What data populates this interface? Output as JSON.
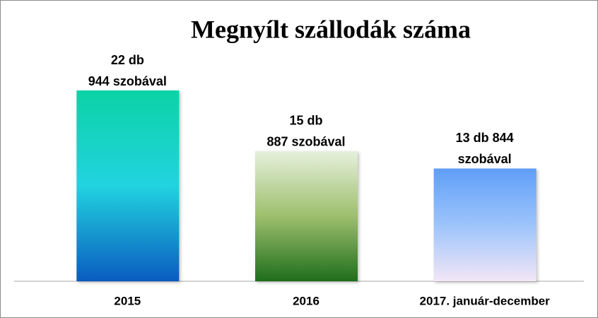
{
  "chart_data": {
    "type": "bar",
    "title": "Megnyílt szállodák száma",
    "categories": [
      "2015",
      "2016",
      "2017. január-december"
    ],
    "values": [
      22,
      15,
      13
    ],
    "value_labels": [
      [
        "22 db",
        "944 szobával"
      ],
      [
        "15 db",
        "887 szobával"
      ],
      [
        "13 db 844",
        "szobával"
      ]
    ],
    "colors": [
      [
        "#0bd3a6",
        "#22d3e0",
        "#0a5cbf"
      ],
      [
        "#e6f0dc",
        "#9dbf6c",
        "#1f6e1c"
      ],
      [
        "#5f9ef8",
        "#9cc4fb",
        "#f3e6f6"
      ]
    ],
    "ylim": [
      0,
      22
    ]
  }
}
